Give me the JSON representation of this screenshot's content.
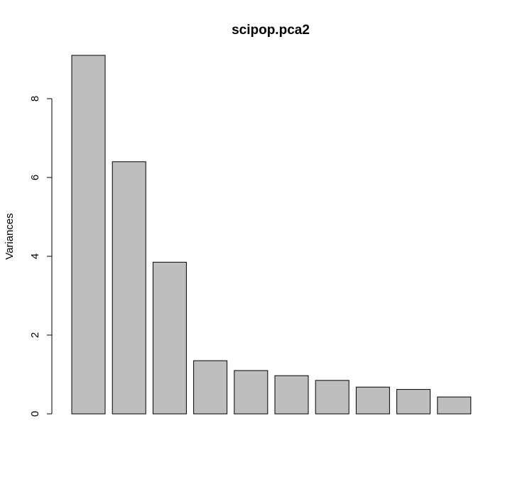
{
  "chart_data": {
    "type": "bar",
    "title": "scipop.pca2",
    "xlabel": "",
    "ylabel": "Variances",
    "ylim": [
      0,
      9.1
    ],
    "yticks": [
      0,
      2,
      4,
      6,
      8
    ],
    "values": [
      9.1,
      6.4,
      3.85,
      1.35,
      1.1,
      0.97,
      0.85,
      0.68,
      0.62,
      0.43
    ],
    "bar_color": "#bebebe",
    "grid": false,
    "legend": "none"
  }
}
